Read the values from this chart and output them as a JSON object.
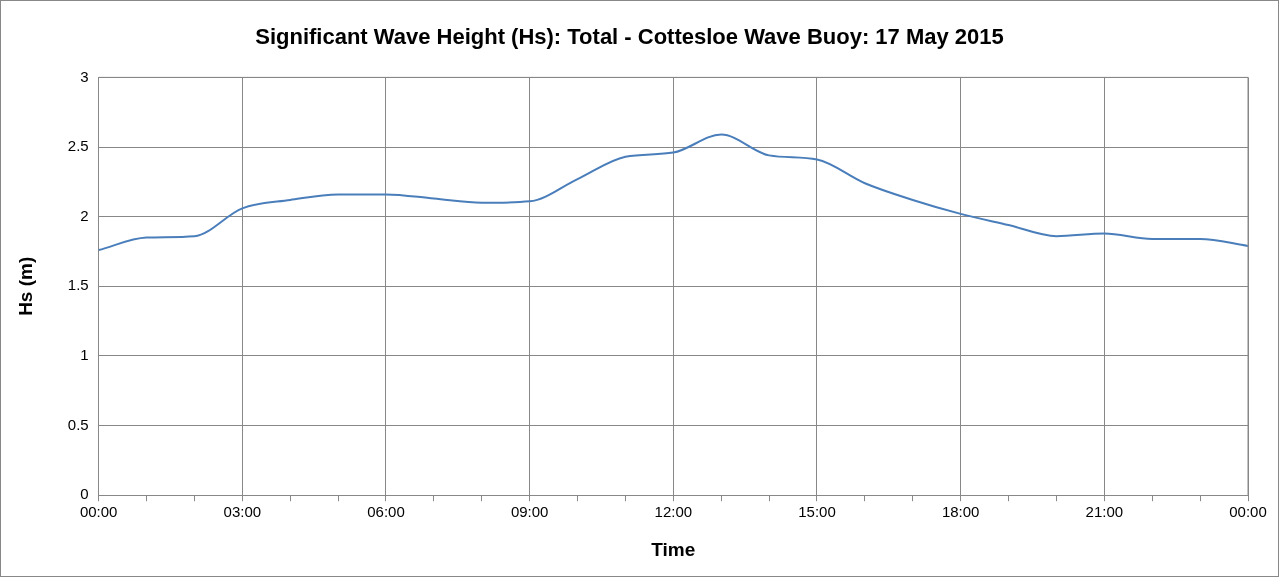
{
  "chart_data": {
    "type": "line",
    "title": "Significant Wave Height (Hs): Total - Cottesloe Wave Buoy: 17 May 2015",
    "xlabel": "Time",
    "ylabel": "Hs (m)",
    "x": [
      0,
      1,
      2,
      3,
      4,
      5,
      6,
      7,
      8,
      9,
      10,
      11,
      12,
      13,
      14,
      15,
      16,
      17,
      18,
      19,
      20,
      21,
      22,
      23,
      24
    ],
    "series": [
      {
        "color": "#4a7ebb",
        "values": [
          1.76,
          1.85,
          1.86,
          2.06,
          2.12,
          2.16,
          2.16,
          2.13,
          2.1,
          2.11,
          2.27,
          2.43,
          2.46,
          2.59,
          2.44,
          2.41,
          2.24,
          2.12,
          2.02,
          1.94,
          1.86,
          1.88,
          1.84,
          1.84,
          1.79
        ]
      }
    ],
    "xlim": [
      0,
      24
    ],
    "xticks": [
      {
        "value": 0,
        "label": "00:00"
      },
      {
        "value": 1,
        "label": null
      },
      {
        "value": 2,
        "label": null
      },
      {
        "value": 3,
        "label": "03:00"
      },
      {
        "value": 4,
        "label": null
      },
      {
        "value": 5,
        "label": null
      },
      {
        "value": 6,
        "label": "06:00"
      },
      {
        "value": 7,
        "label": null
      },
      {
        "value": 8,
        "label": null
      },
      {
        "value": 9,
        "label": "09:00"
      },
      {
        "value": 10,
        "label": null
      },
      {
        "value": 11,
        "label": null
      },
      {
        "value": 12,
        "label": "12:00"
      },
      {
        "value": 13,
        "label": null
      },
      {
        "value": 14,
        "label": null
      },
      {
        "value": 15,
        "label": "15:00"
      },
      {
        "value": 16,
        "label": null
      },
      {
        "value": 17,
        "label": null
      },
      {
        "value": 18,
        "label": "18:00"
      },
      {
        "value": 19,
        "label": null
      },
      {
        "value": 20,
        "label": null
      },
      {
        "value": 21,
        "label": "21:00"
      },
      {
        "value": 22,
        "label": null
      },
      {
        "value": 23,
        "label": null
      },
      {
        "value": 24,
        "label": "00:00"
      }
    ],
    "ylim": [
      0,
      3
    ],
    "yticks": [
      0,
      0.5,
      1,
      1.5,
      2,
      2.5,
      3
    ],
    "grid": true,
    "legend": false,
    "marker": "none",
    "line_style": "solid"
  }
}
